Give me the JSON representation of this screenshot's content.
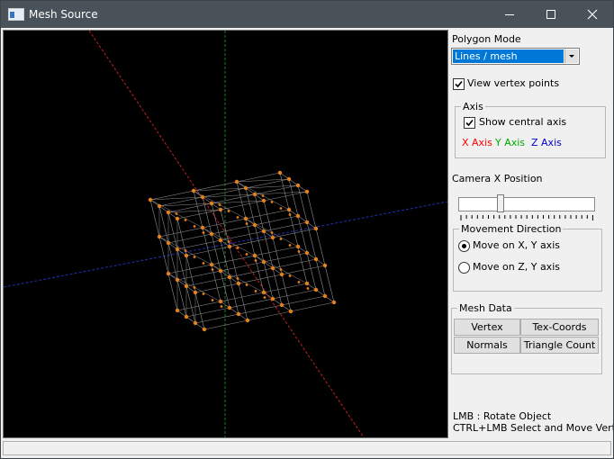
{
  "window": {
    "title": "Mesh Source",
    "controls": [
      "minimize",
      "maximize",
      "close"
    ]
  },
  "panel": {
    "polygon_mode_label": "Polygon Mode",
    "polygon_mode_value": "Lines / mesh",
    "view_vertex_points": {
      "label": "View vertex points",
      "checked": true
    },
    "axis_group": {
      "title": "Axis",
      "show_central_axis": {
        "label": "Show central axis",
        "checked": true
      },
      "x_axis": {
        "label": "X Axis",
        "color": "#ff0000"
      },
      "y_axis": {
        "label": "Y Axis",
        "color": "#00aa00"
      },
      "z_axis": {
        "label": "Z Axis",
        "color": "#0000cc"
      }
    },
    "camera_label": "Camera X Position",
    "camera_slider_position": 0.3,
    "movement_group": {
      "title": "Movement Direction",
      "options": [
        {
          "label": "Move on X, Y axis",
          "selected": true
        },
        {
          "label": "Move on Z, Y axis",
          "selected": false
        }
      ]
    },
    "mesh_data_group": {
      "title": "Mesh Data",
      "buttons": [
        "Vertex",
        "Tex-Coords",
        "Normals",
        "Triangle Count"
      ]
    },
    "help_lines": [
      "LMB : Rotate Object",
      "CTRL+LMB Select and Move Vertex"
    ]
  },
  "viewport": {
    "background": "#000000",
    "vertex_color": "#e8801a",
    "mesh_line_color": "#8c8c8c",
    "axis_x_color": "#c02020",
    "axis_y_color": "#208020",
    "axis_z_color": "#2030b0"
  }
}
